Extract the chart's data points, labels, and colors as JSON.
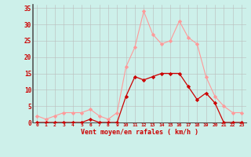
{
  "x": [
    0,
    1,
    2,
    3,
    4,
    5,
    6,
    7,
    8,
    9,
    10,
    11,
    12,
    13,
    14,
    15,
    16,
    17,
    18,
    19,
    20,
    21,
    22,
    23
  ],
  "y_mean": [
    0,
    0,
    0,
    0,
    0,
    0,
    1,
    0,
    0,
    0,
    8,
    14,
    13,
    14,
    15,
    15,
    15,
    11,
    7,
    9,
    6,
    0,
    0,
    0
  ],
  "y_gust": [
    2,
    1,
    2,
    3,
    3,
    3,
    4,
    2,
    1,
    3,
    17,
    23,
    34,
    27,
    24,
    25,
    31,
    26,
    24,
    14,
    8,
    5,
    3,
    3
  ],
  "bg_color": "#cdf0ea",
  "grid_color": "#bbbbbb",
  "line_color_mean": "#cc0000",
  "line_color_gust": "#ff9999",
  "marker_color_mean": "#cc0000",
  "marker_color_gust": "#ff9999",
  "xlabel": "Vent moyen/en rafales ( km/h )",
  "xlabel_color": "#cc0000",
  "tick_color": "#cc0000",
  "spine_color": "#555555",
  "ylim": [
    0,
    36
  ],
  "yticks": [
    0,
    5,
    10,
    15,
    20,
    25,
    30,
    35
  ],
  "xlim": [
    -0.5,
    23.5
  ]
}
